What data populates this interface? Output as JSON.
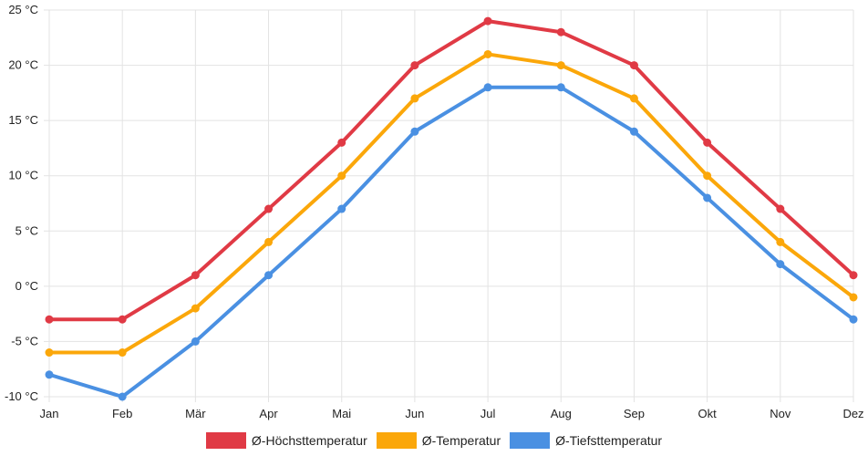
{
  "chart_data": {
    "type": "line",
    "title": "",
    "xlabel": "",
    "ylabel": "",
    "categories": [
      "Jan",
      "Feb",
      "Mär",
      "Apr",
      "Mai",
      "Jun",
      "Jul",
      "Aug",
      "Sep",
      "Okt",
      "Nov",
      "Dez"
    ],
    "y_ticks": [
      "-10 °C",
      "-5 °C",
      "0 °C",
      "5 °C",
      "10 °C",
      "15 °C",
      "20 °C",
      "25 °C"
    ],
    "ylim": [
      -10,
      25
    ],
    "grid": true,
    "legend_position": "bottom",
    "series": [
      {
        "name": "Ø-Höchsttemperatur",
        "color": "#e03a45",
        "values": [
          -3,
          -3,
          1,
          7,
          13,
          20,
          24,
          23,
          20,
          13,
          7,
          1
        ]
      },
      {
        "name": "Ø-Temperatur",
        "color": "#fba70a",
        "values": [
          -6,
          -6,
          -2,
          4,
          10,
          17,
          21,
          20,
          17,
          10,
          4,
          -1
        ]
      },
      {
        "name": "Ø-Tiefsttemperatur",
        "color": "#4a90e2",
        "values": [
          -8,
          -10,
          -5,
          1,
          7,
          14,
          18,
          18,
          14,
          8,
          2,
          -3
        ]
      }
    ]
  }
}
